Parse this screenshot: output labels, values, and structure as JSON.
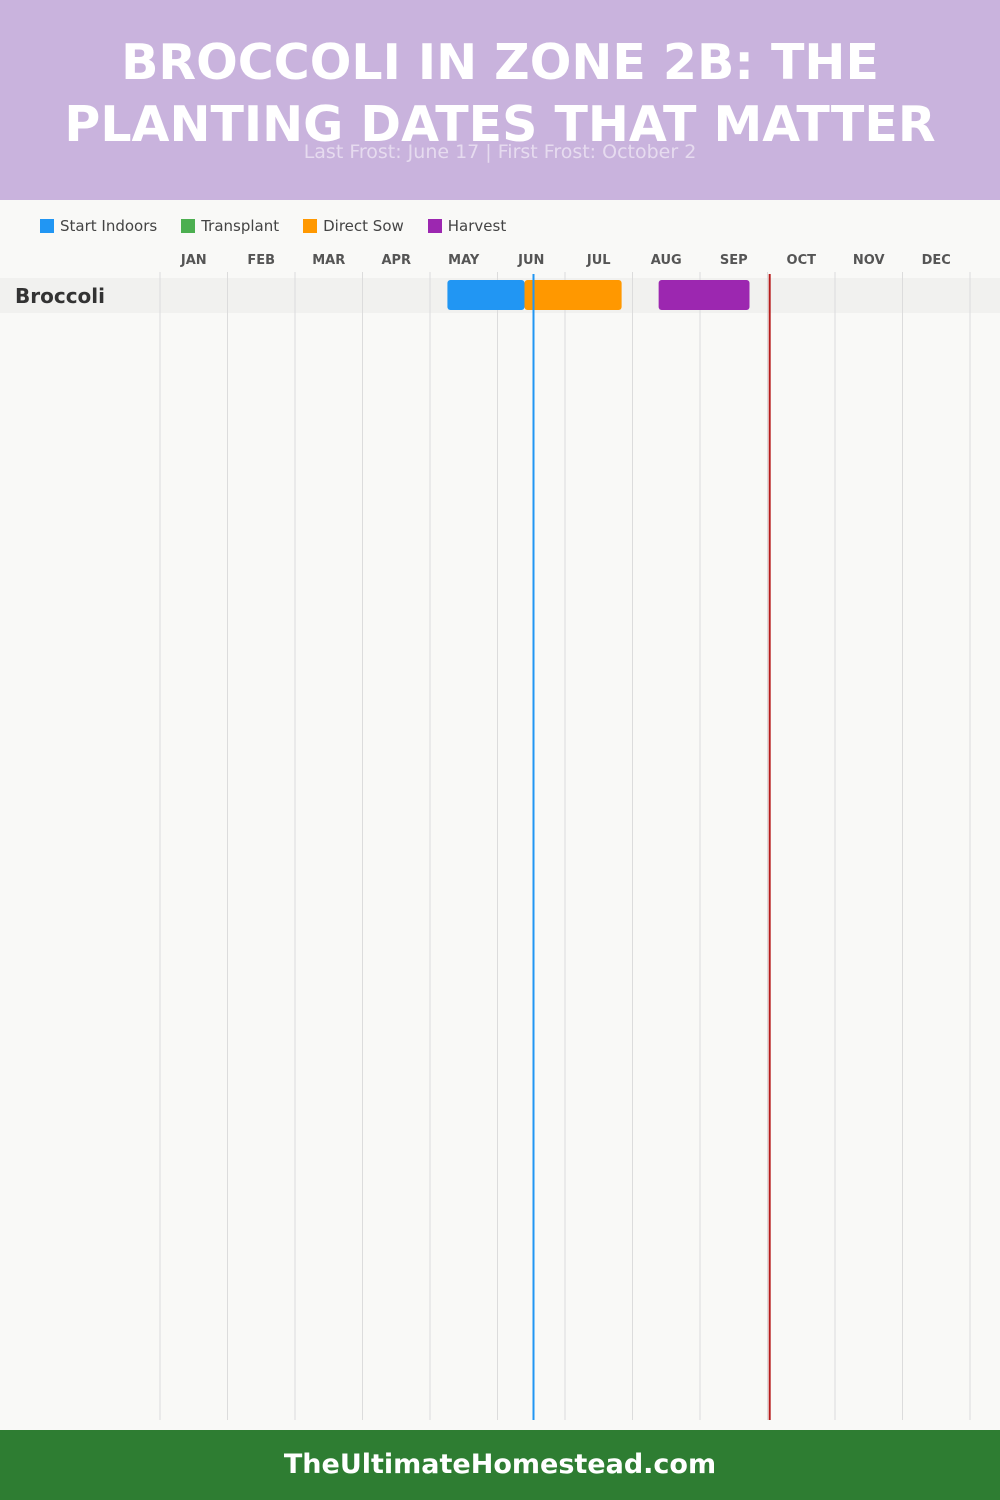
{
  "header": {
    "title": "BROCCOLI IN ZONE 2B: THE PLANTING DATES THAT MATTER",
    "subtitle": "Last Frost: June 17 | First Frost: October 2"
  },
  "legend": [
    {
      "label": "Start Indoors",
      "color": "#2196f3"
    },
    {
      "label": "Transplant",
      "color": "#4caf50"
    },
    {
      "label": "Direct Sow",
      "color": "#ff9800"
    },
    {
      "label": "Harvest",
      "color": "#9c27b0"
    }
  ],
  "chart_data": {
    "type": "gantt",
    "x_axis": {
      "months": [
        "JAN",
        "FEB",
        "MAR",
        "APR",
        "MAY",
        "JUN",
        "JUL",
        "AUG",
        "SEP",
        "OCT",
        "NOV",
        "DEC"
      ]
    },
    "rows": [
      {
        "crop": "Broccoli",
        "bars": [
          {
            "activity": "Start Indoors",
            "start": "May 9",
            "end": "Jun 13"
          },
          {
            "activity": "Direct Sow",
            "start": "Jun 13",
            "end": "Jul 27"
          },
          {
            "activity": "Harvest",
            "start": "Aug 13",
            "end": "Sep 23"
          }
        ]
      }
    ],
    "markers": [
      {
        "label": "Last Frost",
        "date": "Jun 17",
        "color": "#2196f3"
      },
      {
        "label": "First Frost",
        "date": "Oct 2",
        "color": "#b71c1c"
      }
    ],
    "grid": true
  },
  "footer": {
    "site": "TheUltimateHomestead.com"
  }
}
